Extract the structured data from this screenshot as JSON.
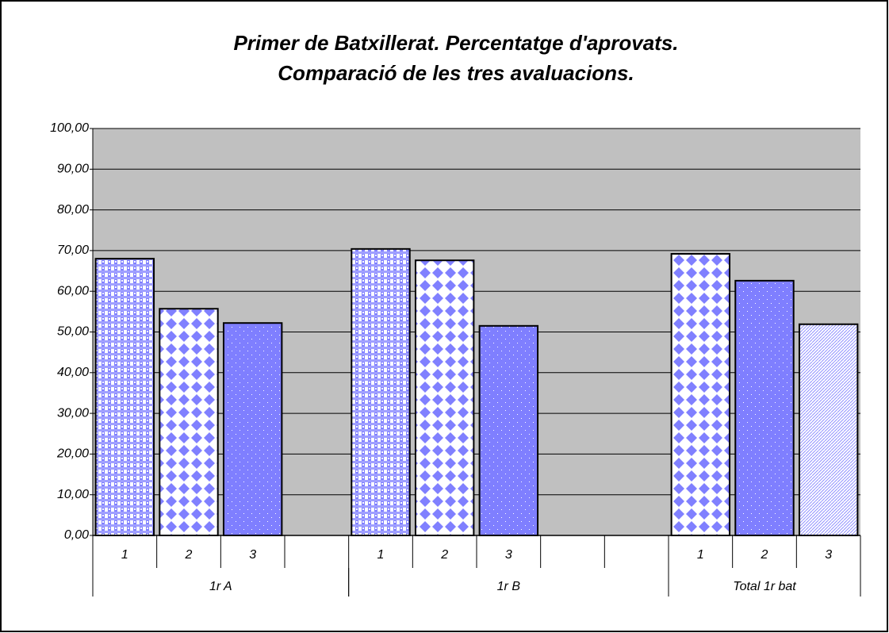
{
  "chart_data": {
    "type": "bar",
    "title": [
      "Primer de Batxillerat. Percentatge d'aprovats.",
      "Comparació de les tres avaluacions."
    ],
    "categories": [
      "1",
      "2",
      "3",
      null,
      "1",
      "2",
      "3",
      null,
      null,
      "1",
      "2",
      "3"
    ],
    "groups": [
      "1r A",
      "1r B",
      "Total 1r bat"
    ],
    "values": [
      68.0,
      55.7,
      52.2,
      null,
      70.4,
      67.6,
      51.5,
      null,
      null,
      69.2,
      62.6,
      51.9
    ],
    "ylim": [
      0,
      100
    ],
    "yticks": [
      {
        "value": 0,
        "label": "0,00"
      },
      {
        "value": 10,
        "label": "10,00"
      },
      {
        "value": 20,
        "label": "20,00"
      },
      {
        "value": 30,
        "label": "30,00"
      },
      {
        "value": 40,
        "label": "40,00"
      },
      {
        "value": 50,
        "label": "50,00"
      },
      {
        "value": 60,
        "label": "60,00"
      },
      {
        "value": 70,
        "label": "70,00"
      },
      {
        "value": 80,
        "label": "80,00"
      },
      {
        "value": 90,
        "label": "90,00"
      },
      {
        "value": 100,
        "label": "100,00"
      }
    ],
    "grid": true
  }
}
